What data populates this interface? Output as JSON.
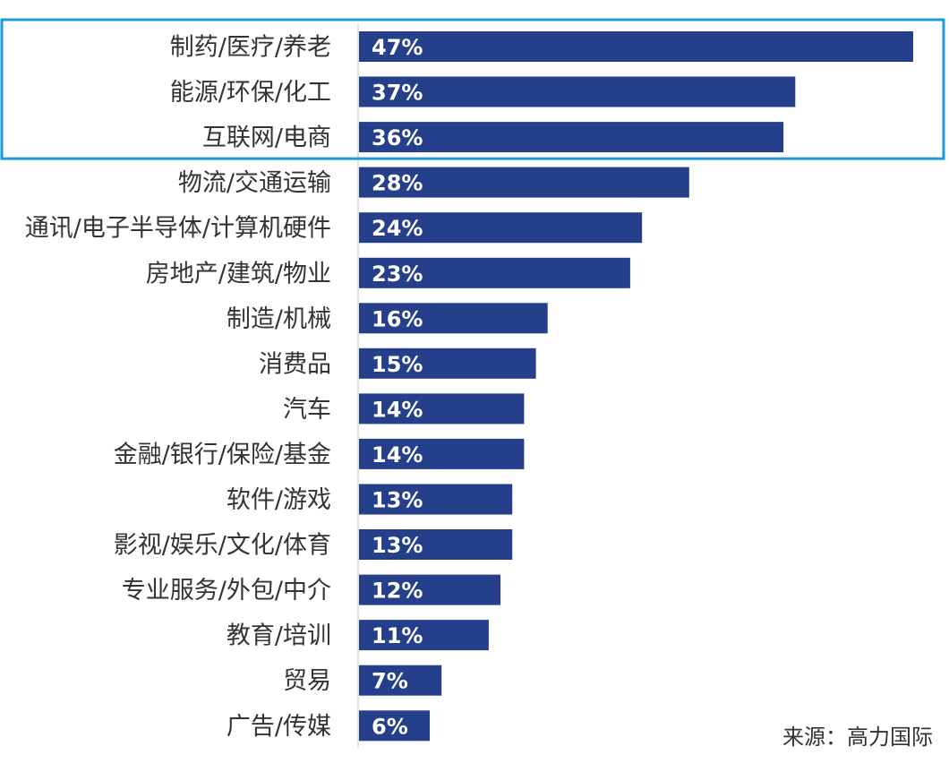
{
  "chart_data": {
    "type": "bar",
    "orientation": "horizontal",
    "categories": [
      "制药/医疗/养老",
      "能源/环保/化工",
      "互联网/电商",
      "物流/交通运输",
      "通讯/电子半导体/计算机硬件",
      "房地产/建筑/物业",
      "制造/机械",
      "消费品",
      "汽车",
      "金融/银行/保险/基金",
      "软件/游戏",
      "影视/娱乐/文化/体育",
      "专业服务/外包/中介",
      "教育/培训",
      "贸易",
      "广告/传媒"
    ],
    "values": [
      47,
      37,
      36,
      28,
      24,
      23,
      16,
      15,
      14,
      14,
      13,
      13,
      12,
      11,
      7,
      6
    ],
    "value_labels": [
      "47%",
      "37%",
      "36%",
      "28%",
      "24%",
      "23%",
      "16%",
      "15%",
      "14%",
      "14%",
      "13%",
      "13%",
      "12%",
      "11%",
      "7%",
      "6%"
    ],
    "unit": "%",
    "xlim": [
      0,
      47
    ],
    "highlighted_categories": [
      "制药/医疗/养老",
      "能源/环保/化工",
      "互联网/电商"
    ],
    "title": "",
    "xlabel": "",
    "ylabel": "",
    "grid": false,
    "legend": "none"
  },
  "source": "来源：高力国际",
  "colors": {
    "bar": "#263f8a",
    "highlight_box": "#1a9ad6",
    "text": "#333333",
    "value_text": "#ffffff",
    "axis": "#d9d9d9"
  }
}
